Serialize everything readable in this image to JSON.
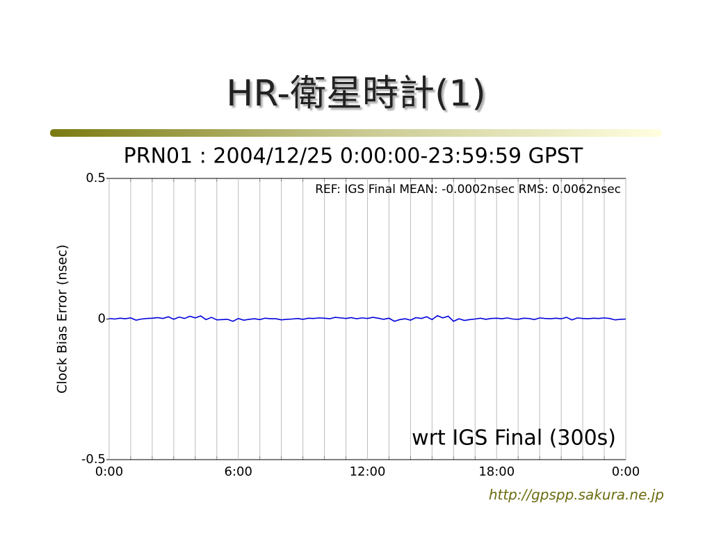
{
  "slide": {
    "title": "HR-衛星時計(1)",
    "footer": "http://gpspp.sakura.ne.jp"
  },
  "chart_data": {
    "type": "line",
    "title": "PRN01 : 2004/12/25 0:00:00-23:59:59 GPST",
    "y_label": "Clock Bias Error (nsec)",
    "annotations": [
      "REF: IGS Final  MEAN: -0.0002nsec RMS: 0.0062nsec",
      "wrt IGS Final (300s)"
    ],
    "color": "#0000dd",
    "xlim": [
      0,
      24
    ],
    "xticks": [
      {
        "value": 0,
        "label": "0:00"
      },
      {
        "value": 6,
        "label": "6:00"
      },
      {
        "value": 12,
        "label": "12:00"
      },
      {
        "value": 18,
        "label": "18:00"
      },
      {
        "value": 24,
        "label": "0:00"
      }
    ],
    "x_minor_ticks": [
      1,
      2,
      3,
      4,
      5,
      7,
      8,
      9,
      10,
      11,
      13,
      14,
      15,
      16,
      17,
      19,
      20,
      21,
      22,
      23
    ],
    "ylim": [
      -0.5,
      0.5
    ],
    "yticks": [
      -0.5,
      0,
      0.5
    ],
    "grid": true,
    "x": [
      0,
      0.25,
      0.5,
      0.75,
      1,
      1.25,
      1.5,
      1.75,
      2,
      2.25,
      2.5,
      2.75,
      3,
      3.25,
      3.5,
      3.75,
      4,
      4.25,
      4.5,
      4.75,
      5,
      5.25,
      5.5,
      5.75,
      6,
      6.25,
      6.5,
      6.75,
      7,
      7.25,
      7.5,
      7.75,
      8,
      8.25,
      8.5,
      8.75,
      9,
      9.25,
      9.5,
      9.75,
      10,
      10.25,
      10.5,
      10.75,
      11,
      11.25,
      11.5,
      11.75,
      12,
      12.25,
      12.5,
      12.75,
      13,
      13.25,
      13.5,
      13.75,
      14,
      14.25,
      14.5,
      14.75,
      15,
      15.25,
      15.5,
      15.75,
      16,
      16.25,
      16.5,
      16.75,
      17,
      17.25,
      17.5,
      17.75,
      18,
      18.25,
      18.5,
      18.75,
      19,
      19.25,
      19.5,
      19.75,
      20,
      20.25,
      20.5,
      20.75,
      21,
      21.25,
      21.5,
      21.75,
      22,
      22.25,
      22.5,
      22.75,
      23,
      23.25,
      23.5,
      23.75,
      24
    ],
    "values": [
      0.002,
      0.0,
      0.003,
      0.001,
      0.004,
      -0.004,
      0.0,
      0.002,
      0.003,
      0.005,
      0.002,
      0.008,
      -0.001,
      0.007,
      0.002,
      0.01,
      0.004,
      0.011,
      -0.002,
      0.006,
      -0.003,
      -0.002,
      -0.001,
      -0.008,
      0.002,
      -0.004,
      -0.001,
      0.001,
      -0.002,
      0.003,
      0.001,
      0.001,
      -0.003,
      -0.001,
      0.0,
      0.002,
      -0.001,
      0.003,
      0.002,
      0.004,
      0.003,
      0.001,
      0.006,
      0.004,
      0.002,
      0.005,
      0.001,
      0.004,
      0.002,
      0.006,
      0.003,
      -0.001,
      0.003,
      -0.008,
      -0.002,
      0.001,
      -0.004,
      0.005,
      0.002,
      0.008,
      -0.002,
      0.012,
      0.004,
      0.01,
      -0.008,
      0.001,
      -0.005,
      -0.002,
      0.0,
      0.003,
      -0.001,
      0.002,
      0.003,
      0.001,
      0.004,
      0.0,
      -0.001,
      0.003,
      0.002,
      -0.002,
      0.004,
      0.002,
      0.001,
      0.003,
      0.001,
      0.006,
      -0.003,
      0.004,
      0.002,
      0.001,
      0.003,
      0.002,
      0.004,
      0.002,
      -0.003,
      -0.001,
      0.0
    ]
  }
}
